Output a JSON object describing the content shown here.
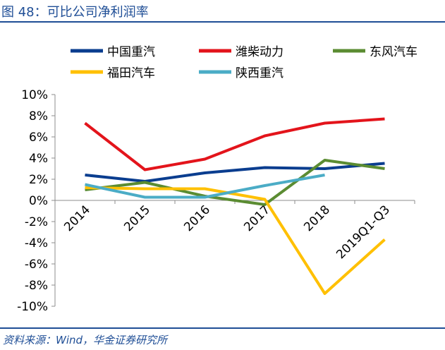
{
  "header": {
    "title": "图 48：可比公司净利润率"
  },
  "footer": {
    "source": "资料来源：Wind，华金证券研究所"
  },
  "colors": {
    "brand": "#1f4e96"
  },
  "chart_data": {
    "type": "line",
    "title": "",
    "xlabel": "",
    "ylabel": "",
    "categories": [
      "2014",
      "2015",
      "2016",
      "2017",
      "2018",
      "2019Q1-Q3"
    ],
    "yticks": [
      "10%",
      "8%",
      "6%",
      "4%",
      "2%",
      "0%",
      "-2%",
      "-4%",
      "-6%",
      "-8%",
      "-10%"
    ],
    "ylim": [
      -10,
      10
    ],
    "legend_position": "top",
    "grid": false,
    "series": [
      {
        "name": "中国重汽",
        "color": "#0a3d8f",
        "values": [
          2.4,
          1.8,
          2.6,
          3.1,
          3.0,
          3.5
        ]
      },
      {
        "name": "潍柴动力",
        "color": "#e3141b",
        "values": [
          7.3,
          2.9,
          3.9,
          6.1,
          7.3,
          7.7
        ]
      },
      {
        "name": "东风汽车",
        "color": "#5b8c32",
        "values": [
          1.0,
          1.7,
          0.4,
          -0.4,
          3.8,
          3.0
        ]
      },
      {
        "name": "福田汽车",
        "color": "#ffc000",
        "values": [
          1.2,
          1.1,
          1.1,
          0.1,
          -8.8,
          -3.7
        ]
      },
      {
        "name": "陕西重汽",
        "color": "#4bacc6",
        "values": [
          1.5,
          0.3,
          0.3,
          1.4,
          2.4,
          null
        ]
      }
    ]
  }
}
